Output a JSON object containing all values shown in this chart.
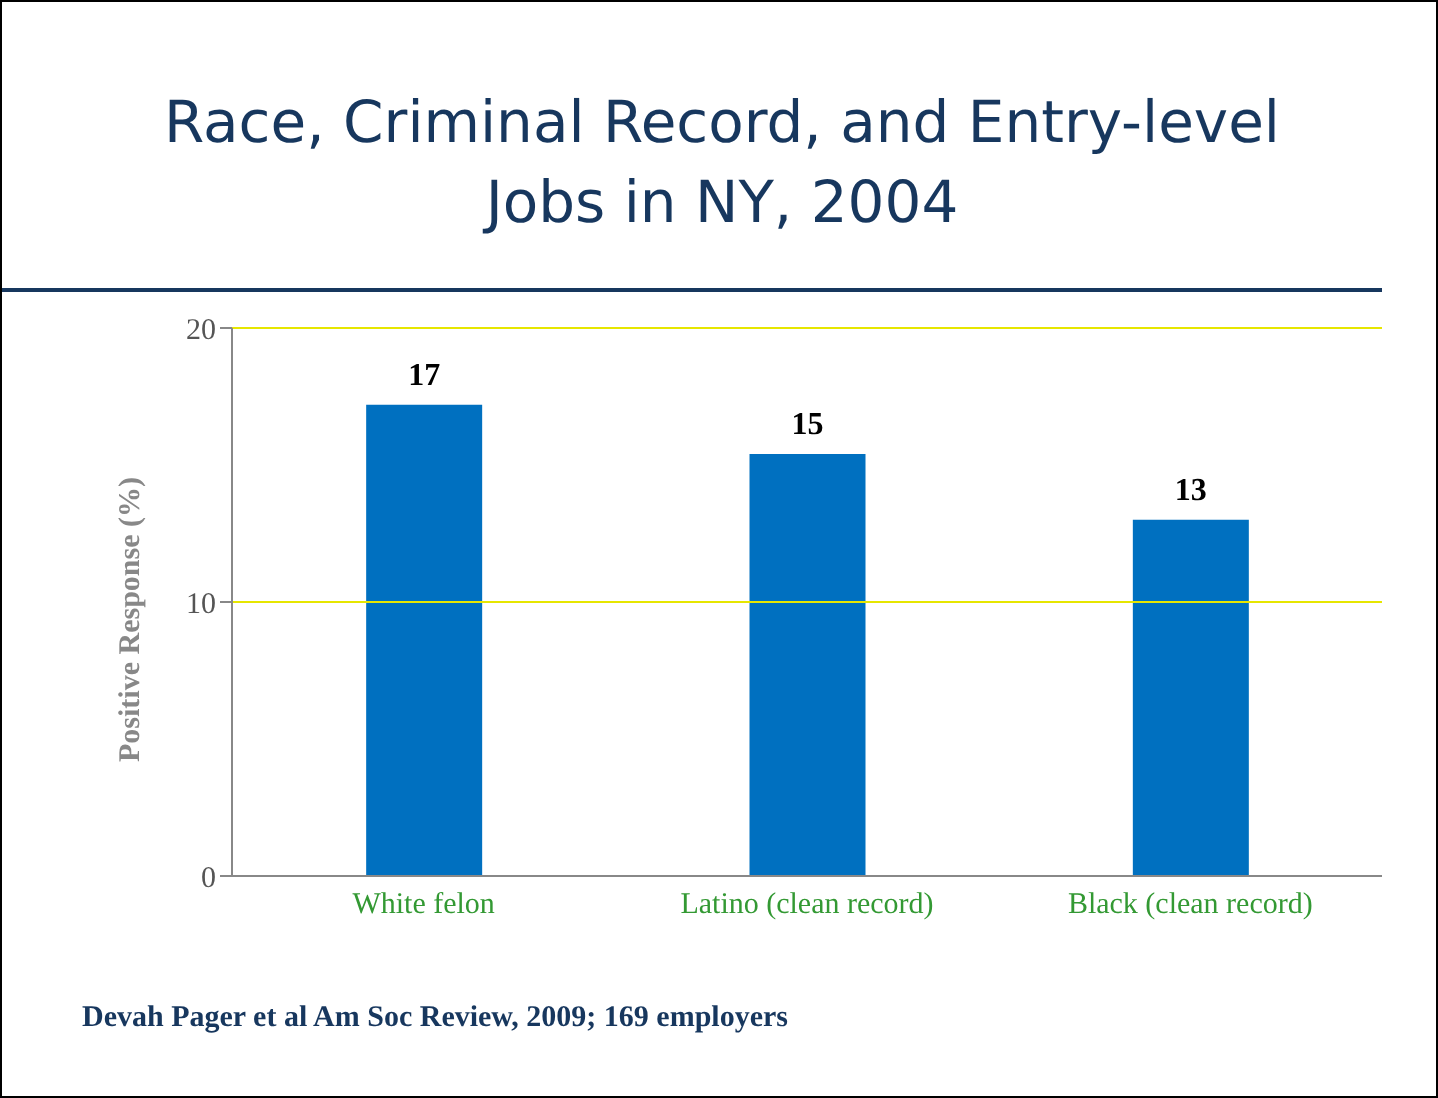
{
  "chart_data": {
    "type": "bar",
    "title": "Race, Criminal Record, and Entry-level Jobs in NY, 2004",
    "ylabel": "Positive Response (%)",
    "categories": [
      "White felon",
      "Latino (clean record)",
      "Black (clean record)"
    ],
    "values": [
      17.2,
      15.4,
      13
    ],
    "value_labels": [
      "17",
      "15",
      "13"
    ],
    "color": "#0070c0",
    "ylim": [
      0,
      20
    ],
    "yticks": [
      0,
      10,
      20
    ],
    "ref_lines": [
      {
        "axis": "y",
        "value": 10,
        "color": "#e6e600"
      }
    ],
    "annotations": [
      "Devah Pager et al Am Soc Review, 2009; 169 employers"
    ]
  }
}
